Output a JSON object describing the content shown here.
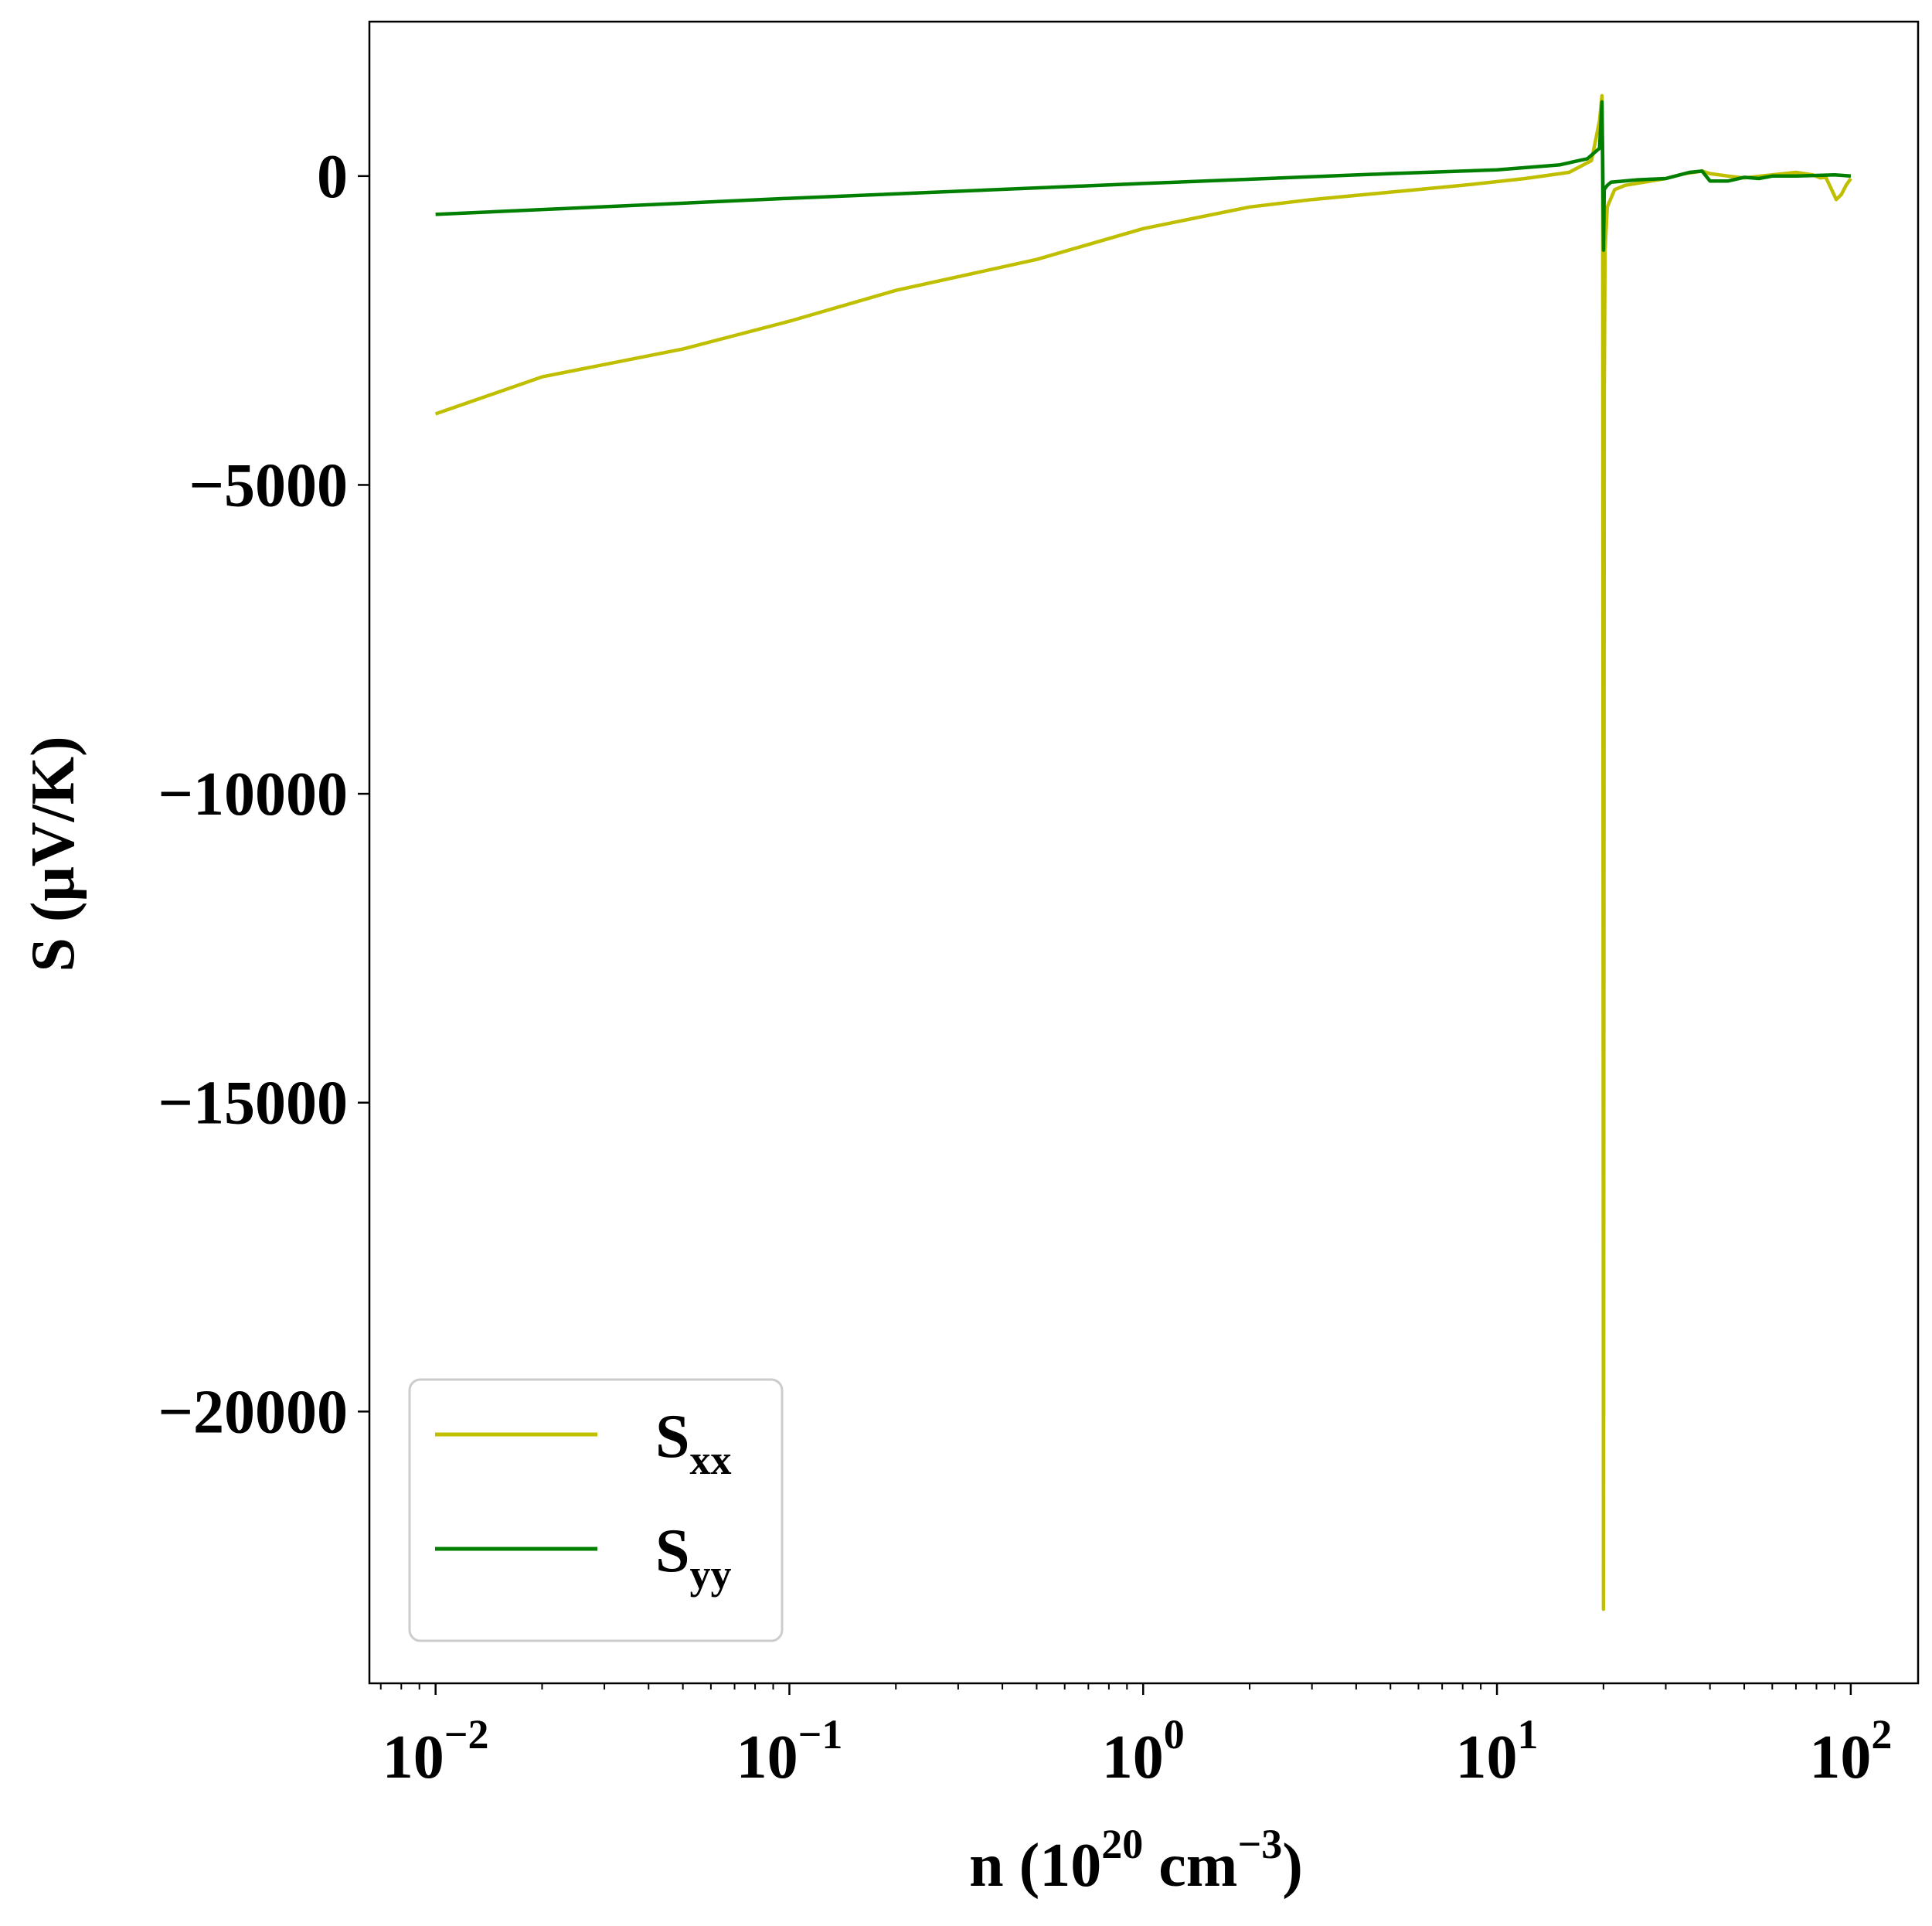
{
  "chart_data": {
    "type": "line",
    "xlabel": {
      "base": "n (10",
      "exp1": "20",
      "mid": " cm",
      "exp2": "−3",
      "end": ")"
    },
    "ylabel": "S (μV/K)",
    "x_scale": "log",
    "xlim": [
      0.0065,
      155
    ],
    "ylim": [
      -24400,
      2500
    ],
    "x_ticks": [
      {
        "value": 0.01,
        "base": "10",
        "exp": "−2"
      },
      {
        "value": 0.1,
        "base": "10",
        "exp": "−1"
      },
      {
        "value": 1,
        "base": "10",
        "exp": "0"
      },
      {
        "value": 10,
        "base": "10",
        "exp": "1"
      },
      {
        "value": 100,
        "base": "10",
        "exp": "2"
      }
    ],
    "y_ticks": [
      {
        "value": 0,
        "label": "0"
      },
      {
        "value": -5000,
        "label": "−5000"
      },
      {
        "value": -10000,
        "label": "−10000"
      },
      {
        "value": -15000,
        "label": "−15000"
      },
      {
        "value": -20000,
        "label": "−20000"
      }
    ],
    "grid": false,
    "legend_position": "lower-left",
    "series": [
      {
        "name": "S",
        "name_sub": "xx",
        "color": "#bfbf00",
        "x": [
          0.01,
          0.02,
          0.05,
          0.1,
          0.2,
          0.5,
          1,
          2,
          3,
          5,
          8,
          12,
          16,
          18.5,
          19.5,
          19.8,
          19.9,
          20.0,
          20.1,
          20.2,
          20.5,
          21.5,
          23,
          26,
          30,
          34,
          38,
          40,
          45,
          50,
          60,
          70,
          78,
          82,
          85,
          88,
          91,
          94,
          97,
          100
        ],
        "y": [
          -3850,
          -3250,
          -2800,
          -2350,
          -1850,
          -1350,
          -850,
          -500,
          -380,
          -260,
          -150,
          -40,
          60,
          250,
          900,
          1300,
          -500,
          -23200,
          -3500,
          -1200,
          -500,
          -220,
          -150,
          -100,
          -40,
          40,
          80,
          40,
          0,
          -30,
          20,
          60,
          20,
          -30,
          -20,
          -200,
          -380,
          -300,
          -150,
          -40
        ]
      },
      {
        "name": "S",
        "name_sub": "yy",
        "color": "#007f00",
        "x": [
          0.01,
          0.1,
          1,
          5,
          10,
          15,
          18,
          19.5,
          19.8,
          19.9,
          20.0,
          20.1,
          20.2,
          20.5,
          21,
          25,
          30,
          35,
          38,
          40,
          45,
          50,
          55,
          60,
          70,
          80,
          90,
          100
        ],
        "y": [
          -620,
          -360,
          -120,
          40,
          100,
          180,
          280,
          450,
          1200,
          300,
          -1200,
          -200,
          -200,
          -150,
          -100,
          -60,
          -40,
          60,
          80,
          -80,
          -80,
          -20,
          -40,
          0,
          0,
          10,
          20,
          0
        ]
      }
    ]
  }
}
